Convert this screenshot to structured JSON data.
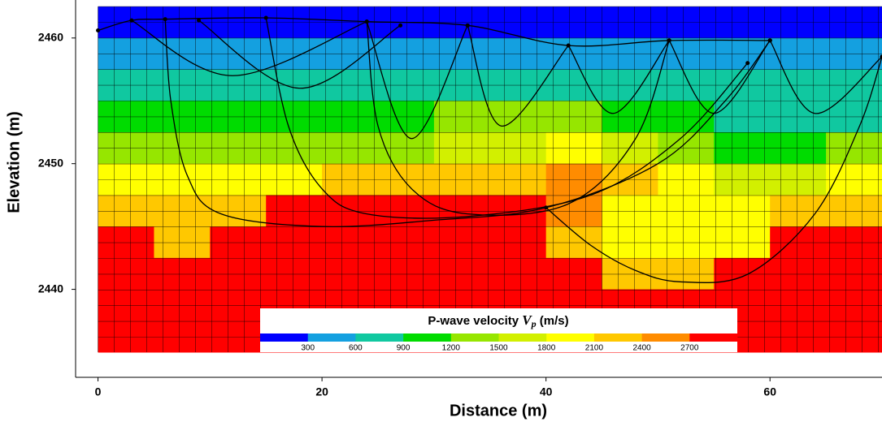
{
  "chart_data": {
    "type": "heatmap",
    "x_label": "Distance (m)",
    "y_label": "Elevation (m)",
    "xlim": [
      -2,
      70
    ],
    "ylim": [
      2433,
      2462.7
    ],
    "xticks": [
      0,
      20,
      40,
      60
    ],
    "yticks": [
      2440,
      2450,
      2460
    ],
    "x_edges": [
      0,
      5,
      10,
      15,
      20,
      25,
      30,
      35,
      40,
      45,
      50,
      55,
      60,
      65,
      70
    ],
    "y_edges": [
      2462.5,
      2460,
      2457.5,
      2455,
      2452.5,
      2450,
      2447.5,
      2445,
      2442.5,
      2440,
      2437.5,
      2435
    ],
    "values": [
      [
        250,
        250,
        250,
        250,
        250,
        250,
        250,
        250,
        250,
        250,
        250,
        250,
        250,
        250
      ],
      [
        450,
        450,
        450,
        450,
        450,
        450,
        450,
        450,
        450,
        450,
        450,
        450,
        450,
        450
      ],
      [
        750,
        750,
        750,
        750,
        750,
        750,
        750,
        750,
        750,
        750,
        750,
        750,
        750,
        750
      ],
      [
        1000,
        1000,
        1000,
        1000,
        1000,
        1000,
        1300,
        1300,
        1300,
        1000,
        1000,
        800,
        800,
        800
      ],
      [
        1400,
        1400,
        1400,
        1400,
        1400,
        1400,
        1700,
        1700,
        1900,
        1700,
        1400,
        1100,
        1100,
        1400
      ],
      [
        1950,
        1950,
        1950,
        1950,
        2100,
        2100,
        2100,
        2100,
        2500,
        2100,
        1900,
        1600,
        1600,
        1900
      ],
      [
        2200,
        2200,
        2300,
        2800,
        2800,
        2800,
        2800,
        2800,
        2500,
        2000,
        2000,
        2000,
        2300,
        2300
      ],
      [
        2800,
        2300,
        2800,
        2800,
        2800,
        2800,
        2800,
        2800,
        2300,
        2000,
        2000,
        2000,
        2800,
        2800
      ],
      [
        2900,
        2900,
        2900,
        2900,
        2900,
        2900,
        2900,
        2900,
        2900,
        2200,
        2200,
        2900,
        2900,
        2900
      ],
      [
        2900,
        2900,
        2900,
        2900,
        2900,
        2900,
        2900,
        2900,
        2900,
        2900,
        2900,
        2900,
        2900,
        2900
      ],
      [
        2900,
        2900,
        2900,
        2900,
        2900,
        2900,
        2900,
        2900,
        2900,
        2900,
        2900,
        2900,
        2900,
        2900
      ]
    ],
    "colorbar_title": "P-wave velocity",
    "colorbar_symbol": "V",
    "colorbar_subscript": "p",
    "colorbar_unit": "(m/s)",
    "colorbar_ticks": [
      300,
      600,
      900,
      1200,
      1500,
      1800,
      2100,
      2400,
      2700
    ],
    "colors": [
      "#0000ff",
      "#14a0e0",
      "#10c8a0",
      "#00dc00",
      "#96e600",
      "#d2f000",
      "#ffff00",
      "#ffc800",
      "#ff8c00",
      "#ff0000"
    ],
    "ray_color": "#000000",
    "rays": [
      {
        "x": [
          0,
          3,
          6,
          15,
          24,
          33,
          42,
          51,
          60
        ],
        "y": [
          2460.6,
          2461.4,
          2461.5,
          2461.6,
          2461.3,
          2461,
          2459.4,
          2459.8,
          2459.8
        ]
      },
      {
        "x": [
          6,
          6.5,
          8,
          11,
          20,
          30,
          40,
          50,
          56,
          60
        ],
        "y": [
          2461.5,
          2455,
          2449,
          2446,
          2445,
          2445.5,
          2446.5,
          2450,
          2455,
          2459.8
        ]
      },
      {
        "x": [
          15,
          17,
          20,
          24,
          33,
          44,
          52,
          58
        ],
        "y": [
          2461.6,
          2453,
          2448,
          2446,
          2445.8,
          2447.5,
          2452,
          2458
        ]
      },
      {
        "x": [
          24,
          25,
          28,
          33,
          42,
          48,
          51
        ],
        "y": [
          2461.3,
          2453,
          2448,
          2446,
          2446.8,
          2452,
          2459.8
        ]
      },
      {
        "x": [
          40,
          44,
          48,
          52,
          58,
          64,
          68,
          70
        ],
        "y": [
          2446.5,
          2443.5,
          2441.5,
          2440.6,
          2441.2,
          2446,
          2453,
          2458.5
        ]
      },
      {
        "x": [
          3,
          12,
          24
        ],
        "y": [
          2461.4,
          2457,
          2461.3
        ]
      },
      {
        "x": [
          9,
          18,
          27
        ],
        "y": [
          2461.4,
          2456,
          2461
        ]
      },
      {
        "x": [
          24,
          28,
          33
        ],
        "y": [
          2461.3,
          2452,
          2461
        ]
      },
      {
        "x": [
          33,
          36,
          42
        ],
        "y": [
          2461,
          2453,
          2459.4
        ]
      },
      {
        "x": [
          42,
          46,
          51
        ],
        "y": [
          2459.4,
          2454,
          2459.8
        ]
      },
      {
        "x": [
          51,
          55,
          60
        ],
        "y": [
          2459.8,
          2454,
          2459.8
        ]
      },
      {
        "x": [
          60,
          64,
          70
        ],
        "y": [
          2459.8,
          2454,
          2458.5
        ]
      }
    ]
  }
}
